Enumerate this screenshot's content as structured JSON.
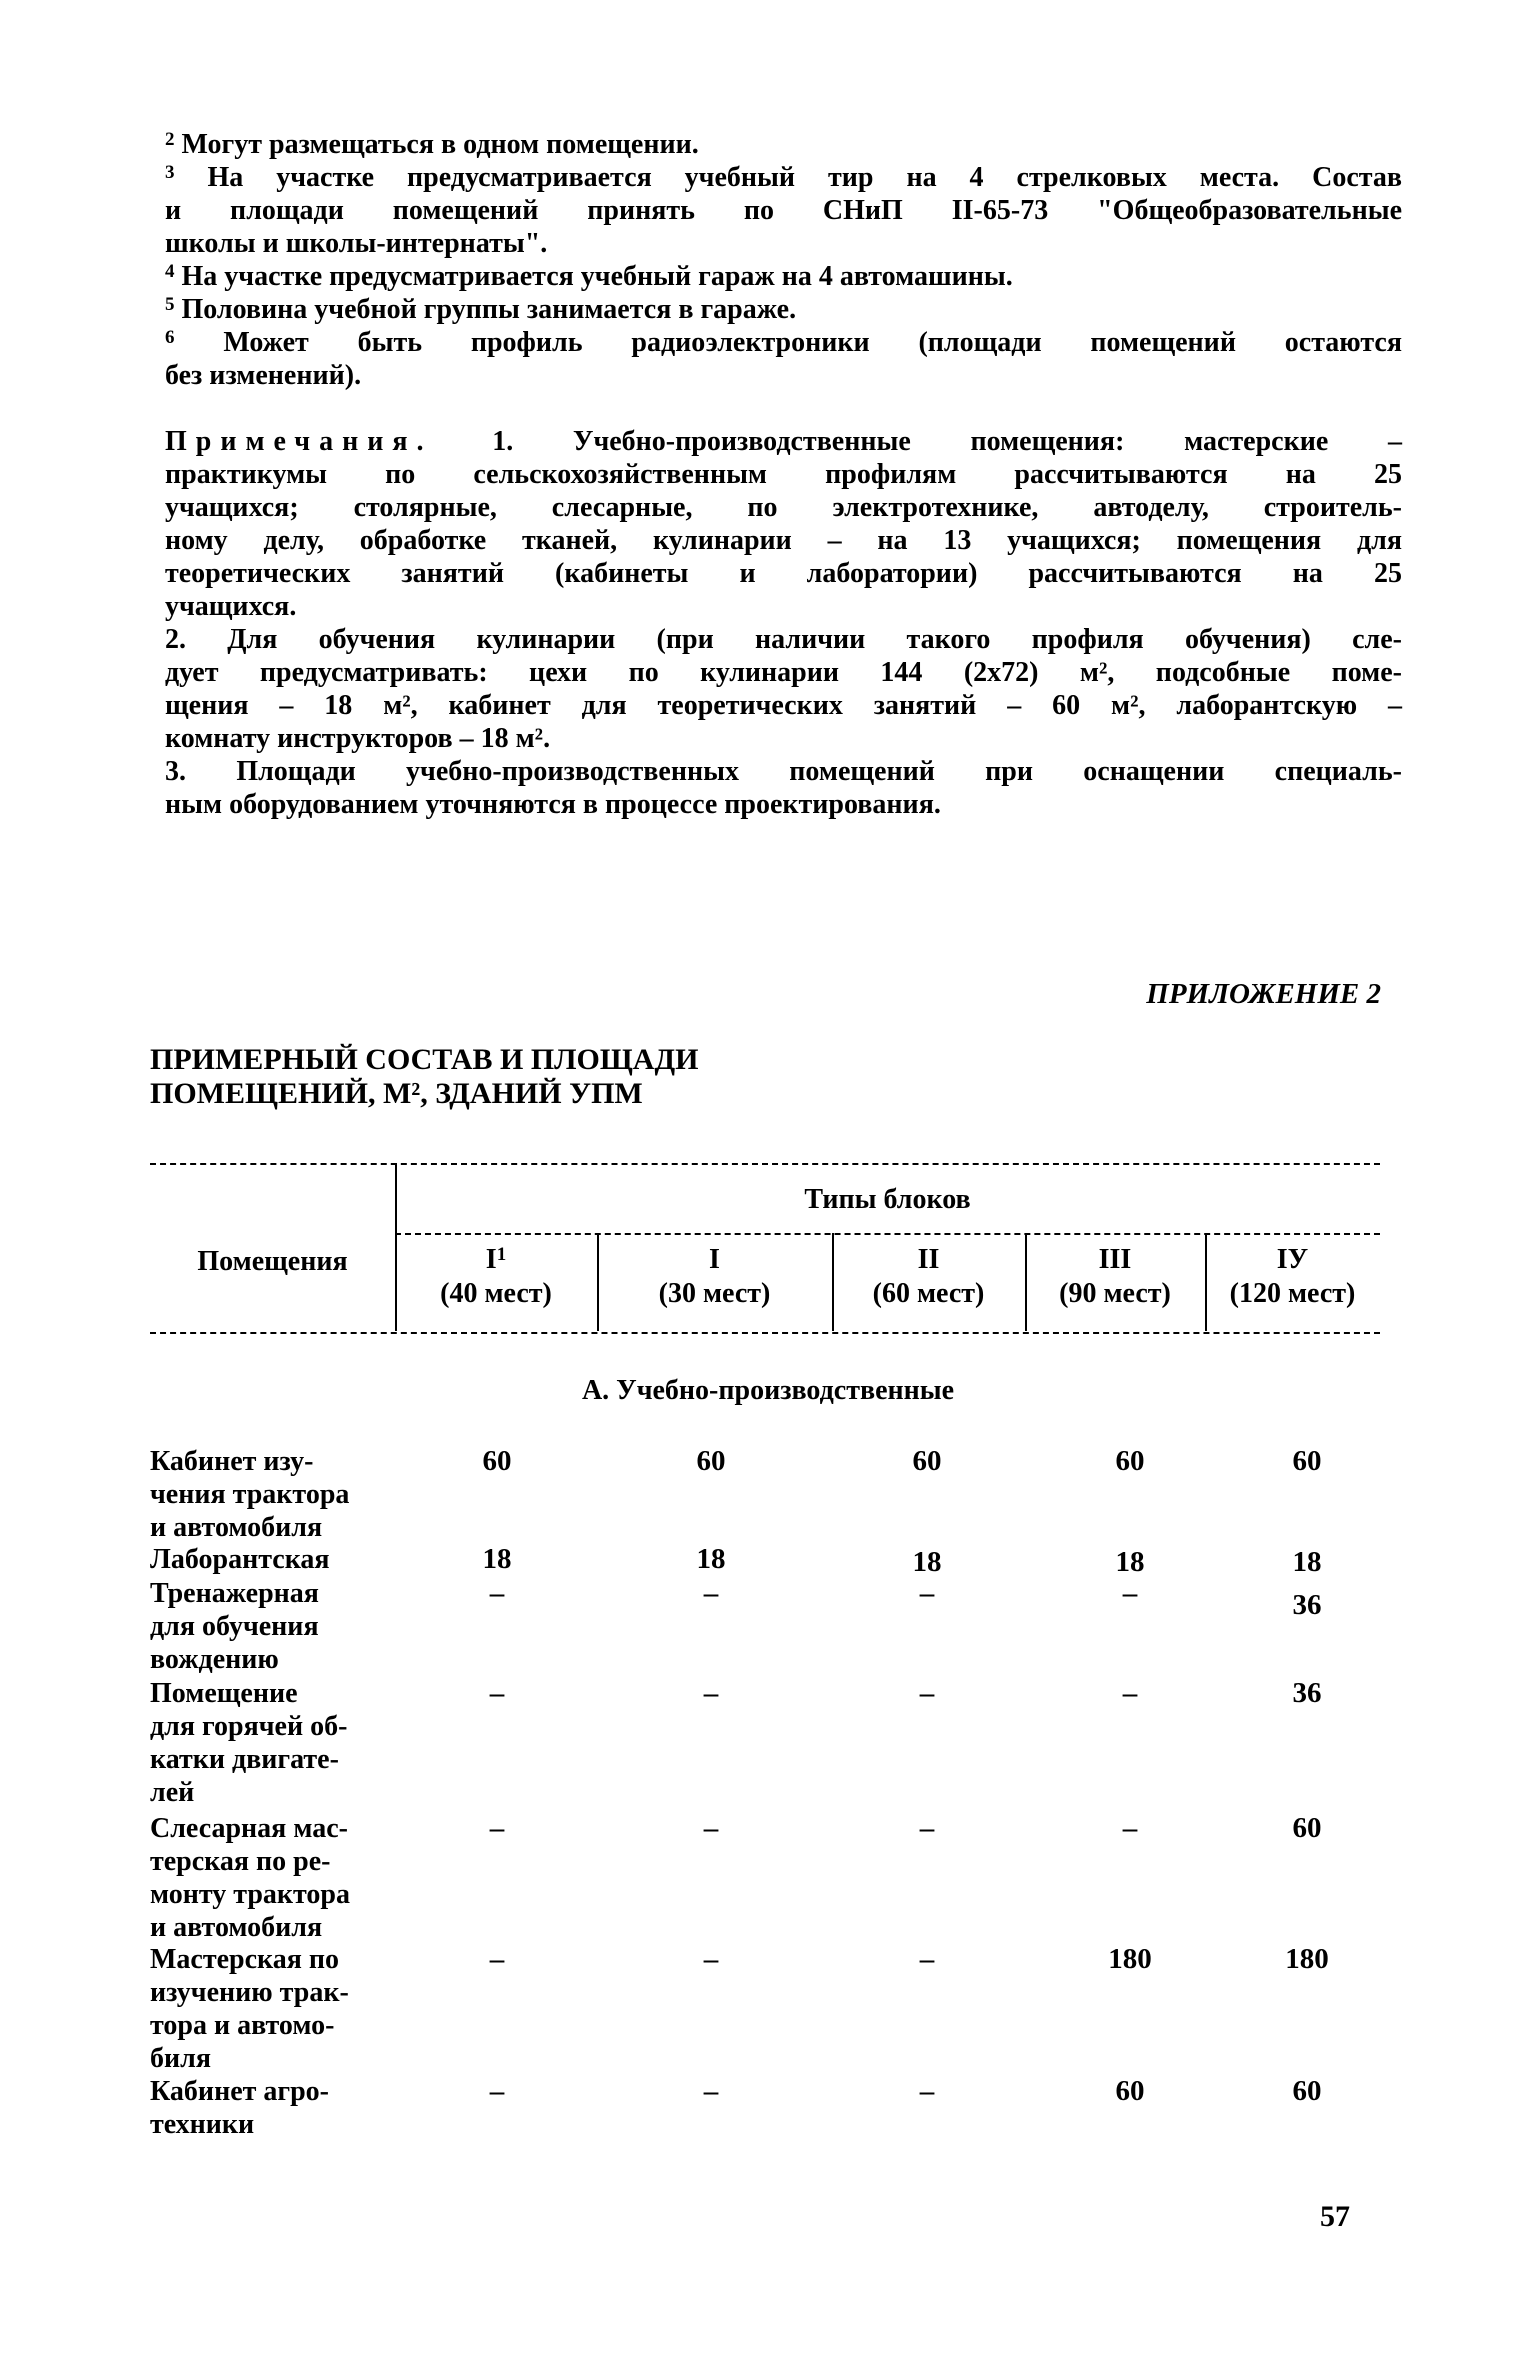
{
  "footnotes": [
    {
      "num": "2",
      "lines": [
        "Могут размещаться в одном помещении."
      ]
    },
    {
      "num": "3",
      "lines": [
        "На участке предусматривается учебный тир на 4 стрелковых места. Состав",
        "и площади помещений принять по СНиП II-65-73 \"Общеобразовательные",
        "школы и школы-интернаты\"."
      ]
    },
    {
      "num": "4",
      "lines": [
        "На участке предусматривается учебный гараж на 4 автомашины."
      ]
    },
    {
      "num": "5",
      "lines": [
        "Половина учебной группы занимается в гараже."
      ]
    },
    {
      "num": "6",
      "lines": [
        "Может быть профиль радиоэлектроники (площади помещений остаются",
        "без изменений)."
      ]
    }
  ],
  "notes": {
    "label": "Примечания.",
    "lines": [
      "1. Учебно-производственные помещения: мастерские –",
      "практикумы по сельскохозяйственным профилям рассчитываются на 25",
      "учащихся; столярные, слесарные, по электротехнике, автоделу, строитель-",
      "ному делу, обработке тканей, кулинарии – на 13 учащихся; помещения для",
      "теоретических занятий (кабинеты и лаборатории) рассчитываются на 25",
      "учащихся.",
      "2. Для обучения кулинарии (при наличии такого профиля обучения) сле-",
      "дует предусматривать: цехи по кулинарии 144 (2х72) м², подсобные поме-",
      "щения – 18 м², кабинет для теоретических занятий – 60 м², лаборантскую –",
      "комнату инструкторов – 18 м².",
      "3. Площади учебно-производственных помещений при оснащении специаль-",
      "ным оборудованием уточняются в процессе проектирования."
    ]
  },
  "appendix": "ПРИЛОЖЕНИЕ 2",
  "title": [
    "ПРИМЕРНЫЙ СОСТАВ И ПЛОЩАДИ",
    "ПОМЕЩЕНИЙ, М², ЗДАНИЙ УПМ"
  ],
  "table": {
    "rooms_header": "Помещения",
    "group_header": "Типы блоков",
    "columns": [
      {
        "type": "I",
        "sup": "1",
        "seats": "(40 мест)"
      },
      {
        "type": "I",
        "sup": "",
        "seats": "(30 мест)"
      },
      {
        "type": "II",
        "sup": "",
        "seats": "(60 мест)"
      },
      {
        "type": "III",
        "sup": "",
        "seats": "(90 мест)"
      },
      {
        "type": "IУ",
        "sup": "",
        "seats": "(120 мест)"
      }
    ],
    "section": "А. Учебно-производственные",
    "rows": [
      {
        "name": [
          "Кабинет изу-",
          "чения трактора",
          "и автомобиля"
        ],
        "values": [
          "60",
          "60",
          "60",
          "60",
          "60"
        ]
      },
      {
        "name": [
          "Лаборантская"
        ],
        "values": [
          "18",
          "18",
          "18",
          "18",
          "18"
        ]
      },
      {
        "name": [
          "Тренажерная",
          "для обучения",
          "вождению"
        ],
        "values": [
          "–",
          "–",
          "–",
          "–",
          "36"
        ]
      },
      {
        "name": [
          "Помещение",
          "для горячей об-",
          "катки двигате-",
          "лей"
        ],
        "values": [
          "–",
          "–",
          "–",
          "–",
          "36"
        ]
      },
      {
        "name": [
          "Слесарная мас-",
          "терская по ре-",
          "монту трактора",
          "и автомобиля"
        ],
        "values": [
          "–",
          "–",
          "–",
          "–",
          "60"
        ]
      },
      {
        "name": [
          "Мастерская по",
          "изучению трак-",
          "тора и автомо-",
          "биля"
        ],
        "values": [
          "–",
          "–",
          "–",
          "180",
          "180"
        ]
      },
      {
        "name": [
          "Кабинет агро-",
          "техники"
        ],
        "values": [
          "–",
          "–",
          "–",
          "60",
          "60"
        ]
      }
    ]
  },
  "page_number": "57"
}
